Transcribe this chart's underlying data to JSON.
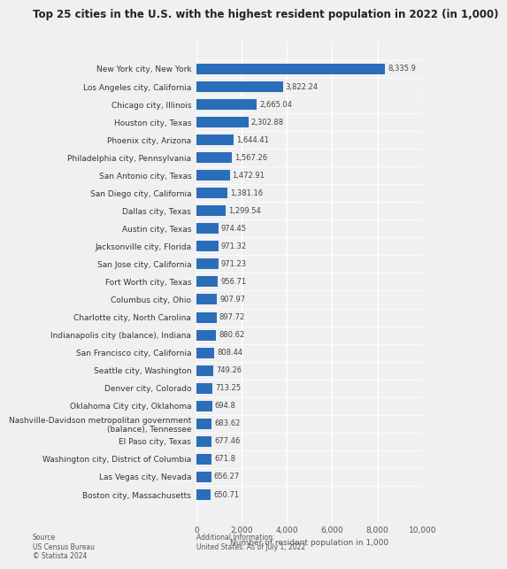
{
  "title": "Top 25 cities in the U.S. with the highest resident population in 2022 (in 1,000)",
  "xlabel": "Number of resident population in 1,000",
  "cities": [
    "New York city, New York",
    "Los Angeles city, California",
    "Chicago city, Illinois",
    "Houston city, Texas",
    "Phoenix city, Arizona",
    "Philadelphia city, Pennsylvania",
    "San Antonio city, Texas",
    "San Diego city, California",
    "Dallas city, Texas",
    "Austin city, Texas",
    "Jacksonville city, Florida",
    "San Jose city, California",
    "Fort Worth city, Texas",
    "Columbus city, Ohio",
    "Charlotte city, North Carolina",
    "Indianapolis city (balance), Indiana",
    "San Francisco city, California",
    "Seattle city, Washington",
    "Denver city, Colorado",
    "Oklahoma City city, Oklahoma",
    "Nashville-Davidson metropolitan government\n(balance), Tennessee",
    "El Paso city, Texas",
    "Washington city, District of Columbia",
    "Las Vegas city, Nevada",
    "Boston city, Massachusetts"
  ],
  "values": [
    8335.9,
    3822.24,
    2665.04,
    2302.88,
    1644.41,
    1567.26,
    1472.91,
    1381.16,
    1299.54,
    974.45,
    971.32,
    971.23,
    956.71,
    907.97,
    897.72,
    880.62,
    808.44,
    749.26,
    713.25,
    694.8,
    683.62,
    677.46,
    671.8,
    656.27,
    650.71
  ],
  "value_labels": [
    "8,335.9",
    "3,822.24",
    "2,665.04",
    "2,302.88",
    "1,644.41",
    "1,567.26",
    "1,472.91",
    "1,381.16",
    "1,299.54",
    "974.45",
    "971.32",
    "971.23",
    "956.71",
    "907.97",
    "897.72",
    "880.62",
    "808.44",
    "749.26",
    "713.25",
    "694.8",
    "683.62",
    "677.46",
    "671.8",
    "656.27",
    "650.71"
  ],
  "bar_color": "#2a6eba",
  "bg_color": "#f0f0f0",
  "plot_bg_color": "#f0f0f0",
  "title_fontsize": 8.5,
  "label_fontsize": 6.5,
  "value_fontsize": 6,
  "xlabel_fontsize": 6.5,
  "source_text": "Source\nUS Census Bureau\n© Statista 2024",
  "additional_text": "Additional Information:\nUnited States: As of July 1, 2022",
  "xlim": [
    0,
    10000
  ],
  "xticks": [
    0,
    2000,
    4000,
    6000,
    8000,
    10000
  ]
}
